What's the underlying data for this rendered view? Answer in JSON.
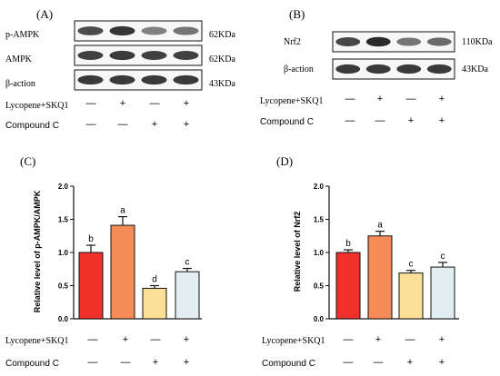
{
  "panels": {
    "A": {
      "label": "(A)",
      "blots": [
        {
          "name": "p-AMPK",
          "size": "62KDa",
          "intensity": [
            0.8,
            0.9,
            0.55,
            0.6
          ]
        },
        {
          "name": "AMPK",
          "size": "62KDa",
          "intensity": [
            0.85,
            0.88,
            0.85,
            0.85
          ]
        },
        {
          "name": "β-action",
          "size": "43KDa",
          "intensity": [
            0.88,
            0.88,
            0.88,
            0.88
          ]
        }
      ],
      "conditions": [
        {
          "label": "Lycopene+SKQ1",
          "marks": [
            "—",
            "+",
            "—",
            "+"
          ]
        },
        {
          "label": "Compound C",
          "marks": [
            "—",
            "—",
            "+",
            "+"
          ]
        }
      ]
    },
    "B": {
      "label": "(B)",
      "blots": [
        {
          "name": "Nrf2",
          "size": "110KDa",
          "intensity": [
            0.82,
            0.95,
            0.6,
            0.65
          ]
        },
        {
          "name": "β-action",
          "size": "43KDa",
          "intensity": [
            0.88,
            0.88,
            0.88,
            0.88
          ]
        }
      ],
      "conditions": [
        {
          "label": "Lycopene+SKQ1",
          "marks": [
            "—",
            "+",
            "—",
            "+"
          ]
        },
        {
          "label": "Compound C",
          "marks": [
            "—",
            "—",
            "+",
            "+"
          ]
        }
      ]
    }
  },
  "chart_data": [
    {
      "panel_label": "(C)",
      "type": "bar",
      "ylabel": "Relative level of p-AMPK/AMPK",
      "ylim": [
        0,
        2.0
      ],
      "yticks": [
        "0.0",
        "0.5",
        "1.0",
        "1.5",
        "2.0"
      ],
      "values": [
        1.0,
        1.41,
        0.46,
        0.71
      ],
      "errors": [
        0.11,
        0.13,
        0.04,
        0.05
      ],
      "letters": [
        "b",
        "a",
        "d",
        "c"
      ],
      "colors": [
        "#f0302a",
        "#f58c57",
        "#fde097",
        "#e3eef2"
      ],
      "conditions": [
        {
          "label": "Lycopene+SKQ1",
          "marks": [
            "—",
            "+",
            "—",
            "+"
          ]
        },
        {
          "label": "Compound C",
          "marks": [
            "—",
            "—",
            "+",
            "+"
          ]
        }
      ]
    },
    {
      "panel_label": "(D)",
      "type": "bar",
      "ylabel": "Relative level of Nrf2",
      "ylim": [
        0,
        2.0
      ],
      "yticks": [
        "0.0",
        "0.5",
        "1.0",
        "1.5",
        "2.0"
      ],
      "values": [
        1.0,
        1.25,
        0.69,
        0.78
      ],
      "errors": [
        0.04,
        0.07,
        0.04,
        0.07
      ],
      "letters": [
        "b",
        "a",
        "c",
        "c"
      ],
      "colors": [
        "#f0302a",
        "#f58c57",
        "#fde097",
        "#e3eef2"
      ],
      "conditions": [
        {
          "label": "Lycopene+SKQ1",
          "marks": [
            "—",
            "+",
            "—",
            "+"
          ]
        },
        {
          "label": "Compound C",
          "marks": [
            "—",
            "—",
            "+",
            "+"
          ]
        }
      ]
    }
  ]
}
